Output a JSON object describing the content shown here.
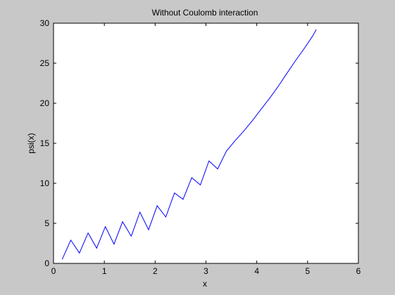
{
  "chart_data": {
    "type": "line",
    "title": "Without Coulomb interaction",
    "xlabel": "x",
    "ylabel": "psi(x)",
    "xlim": [
      0,
      6
    ],
    "ylim": [
      0,
      30
    ],
    "xticks": [
      0,
      1,
      2,
      3,
      4,
      5,
      6
    ],
    "yticks": [
      0,
      5,
      10,
      15,
      20,
      25,
      30
    ],
    "grid": false,
    "line_color": "#0000ff",
    "series": [
      {
        "x": [
          0.17,
          0.34,
          0.51,
          0.68,
          0.85,
          1.02,
          1.19,
          1.36,
          1.53,
          1.7,
          1.87,
          2.04,
          2.21,
          2.38,
          2.55,
          2.72,
          2.89,
          3.06,
          3.23,
          3.4,
          3.57,
          3.74,
          3.91,
          4.08,
          4.25,
          4.42,
          4.59,
          4.76,
          4.93,
          5.1,
          5.17
        ],
        "y": [
          0.5,
          2.9,
          1.3,
          3.8,
          1.9,
          4.6,
          2.4,
          5.2,
          3.4,
          6.4,
          4.2,
          7.2,
          5.8,
          8.8,
          8.0,
          10.7,
          9.8,
          12.8,
          11.8,
          14.0,
          15.3,
          16.5,
          17.8,
          19.2,
          20.6,
          22.1,
          23.7,
          25.3,
          26.8,
          28.4,
          29.2
        ]
      }
    ]
  }
}
